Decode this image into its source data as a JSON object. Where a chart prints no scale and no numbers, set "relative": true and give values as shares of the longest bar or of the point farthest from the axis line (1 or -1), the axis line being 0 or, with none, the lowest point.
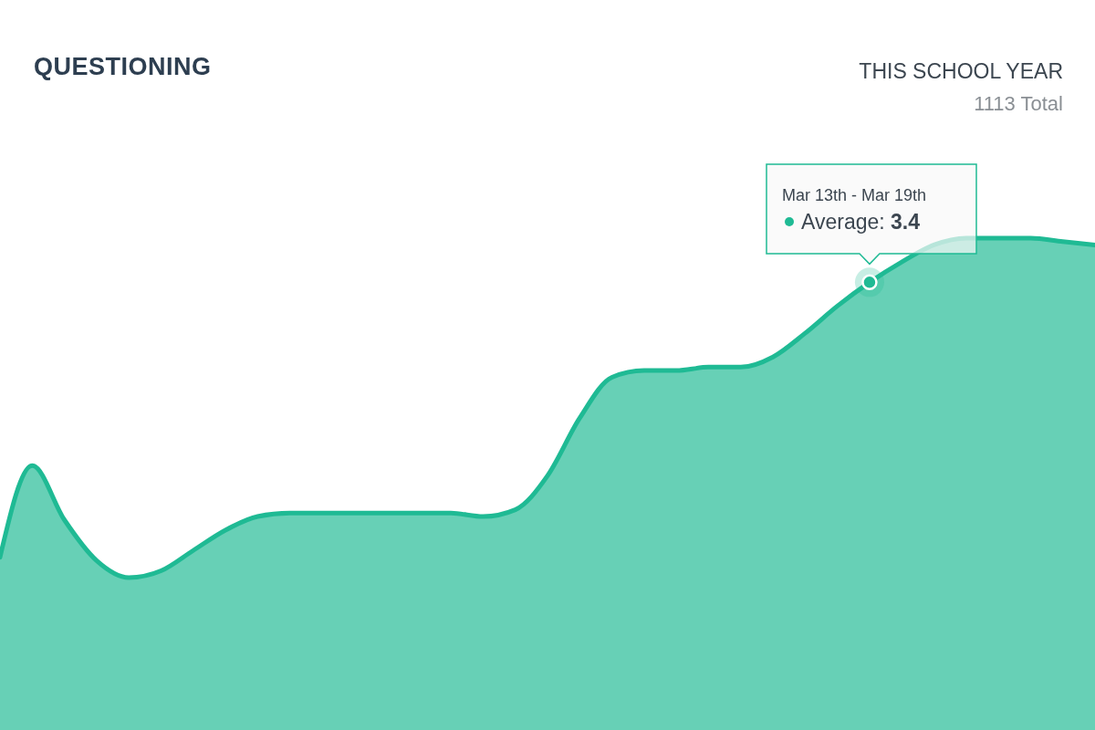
{
  "chart_data": {
    "type": "area",
    "title": "QUESTIONING",
    "subtitle": "THIS SCHOOL YEAR",
    "relative": true,
    "annotations": [
      "1113 Total",
      "Mar 13th - Mar 19th",
      "Average: 3.4"
    ],
    "categories": [
      null,
      null,
      null,
      null,
      null,
      null,
      null,
      null,
      null,
      null,
      null,
      null,
      null,
      null,
      null,
      null,
      null,
      null,
      null,
      null,
      null,
      null,
      null,
      null,
      null,
      null,
      null,
      null,
      null,
      null,
      null,
      null,
      null,
      null,
      null
    ],
    "series": [
      {
        "color": "#1fba94",
        "values": [
          0.06,
          0.33,
          0.17,
          0.05,
          0.0,
          0.02,
          0.08,
          0.14,
          0.18,
          0.19,
          0.19,
          0.19,
          0.19,
          0.19,
          0.19,
          0.18,
          0.2,
          0.3,
          0.47,
          0.59,
          0.61,
          0.61,
          0.62,
          0.62,
          0.65,
          0.72,
          0.8,
          0.87,
          0.93,
          0.98,
          1.0,
          1.0,
          1.0,
          0.99,
          0.98
        ]
      }
    ]
  }
}
